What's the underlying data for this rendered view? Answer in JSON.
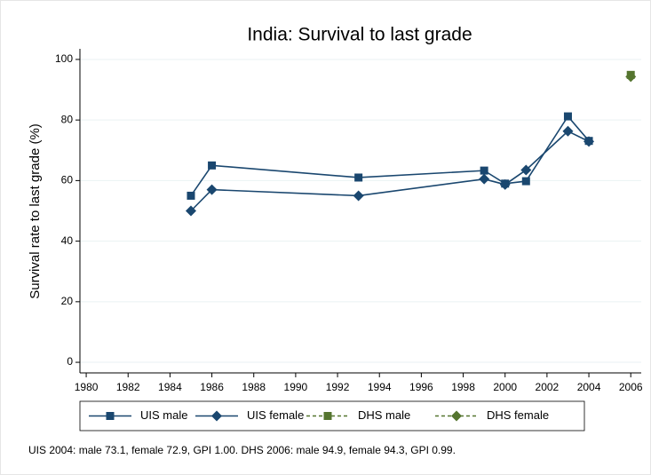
{
  "chart_data": {
    "type": "line",
    "title": "India: Survival to last grade",
    "y_label": "Survival rate to last grade (%)",
    "note": "UIS 2004: male 73.1, female 72.9, GPI 1.00. DHS 2006: male 94.9, female 94.3, GPI 0.99.",
    "x": [
      1985,
      1986,
      1993,
      1999,
      2000,
      2001,
      2003,
      2004,
      2006
    ],
    "series": [
      {
        "name": "UIS male",
        "color": "#1a476f",
        "marker": "square",
        "dashed": false,
        "values": [
          55,
          65,
          61,
          63.3,
          59,
          59.8,
          81.2,
          73.1,
          null
        ]
      },
      {
        "name": "UIS female",
        "color": "#1a476f",
        "marker": "diamond",
        "dashed": false,
        "values": [
          50,
          57,
          55,
          60.5,
          58.7,
          63.5,
          76.3,
          72.9,
          null
        ]
      },
      {
        "name": "DHS male",
        "color": "#55752f",
        "marker": "square",
        "dashed": true,
        "values": [
          null,
          null,
          null,
          null,
          null,
          null,
          null,
          null,
          94.9
        ]
      },
      {
        "name": "DHS female",
        "color": "#55752f",
        "marker": "diamond",
        "dashed": true,
        "values": [
          null,
          null,
          null,
          null,
          null,
          null,
          null,
          null,
          94.3
        ]
      }
    ],
    "xlim": [
      1979.7,
      2006.5
    ],
    "xticks": [
      1980,
      1982,
      1984,
      1986,
      1988,
      1990,
      1992,
      1994,
      1996,
      1998,
      2000,
      2002,
      2004,
      2006
    ],
    "ylim": [
      -3.5,
      103.5
    ],
    "yticks": [
      0,
      20,
      40,
      60,
      80,
      100
    ],
    "grid": true,
    "legend": "bottom"
  }
}
